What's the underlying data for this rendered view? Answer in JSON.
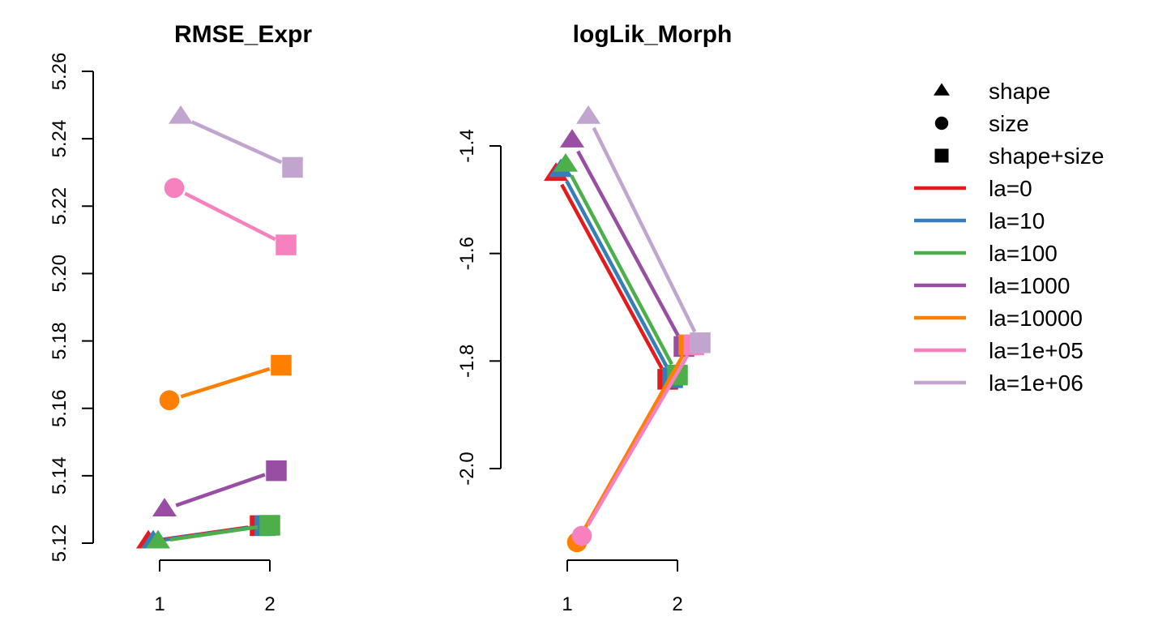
{
  "chart_data": [
    {
      "type": "line",
      "title": "RMSE_Expr",
      "xlabel": "",
      "ylabel": "",
      "x_ticks": [
        "1",
        "2"
      ],
      "y_ticks": [
        "5.12",
        "5.14",
        "5.16",
        "5.18",
        "5.20",
        "5.22",
        "5.24",
        "5.26"
      ],
      "ylim": [
        5.12,
        5.26
      ],
      "grid": false,
      "series": [
        {
          "name": "la=0",
          "start_shape": "shape",
          "x": [
            1,
            2
          ],
          "values": [
            5.1205,
            5.1252
          ]
        },
        {
          "name": "la=10",
          "start_shape": "shape",
          "x": [
            1,
            2
          ],
          "values": [
            5.1205,
            5.1252
          ]
        },
        {
          "name": "la=100",
          "start_shape": "shape",
          "x": [
            1,
            2
          ],
          "values": [
            5.1205,
            5.1253
          ]
        },
        {
          "name": "la=1000",
          "start_shape": "shape",
          "x": [
            1,
            2
          ],
          "values": [
            5.13,
            5.1415
          ]
        },
        {
          "name": "la=10000",
          "start_shape": "size",
          "x": [
            1,
            2
          ],
          "values": [
            5.1624,
            5.1728
          ]
        },
        {
          "name": "la=1e+05",
          "start_shape": "size",
          "x": [
            1,
            2
          ],
          "values": [
            5.2254,
            5.2085
          ]
        },
        {
          "name": "la=1e+06",
          "start_shape": "shape",
          "x": [
            1,
            2
          ],
          "values": [
            5.2465,
            5.2315
          ]
        }
      ]
    },
    {
      "type": "line",
      "title": "logLik_Morph",
      "xlabel": "",
      "ylabel": "",
      "x_ticks": [
        "1",
        "2"
      ],
      "y_ticks": [
        "-1.4",
        "-1.6",
        "-1.8",
        "-2.0"
      ],
      "ylim": [
        -2.14,
        -1.35
      ],
      "grid": false,
      "series": [
        {
          "name": "la=0",
          "start_shape": "shape",
          "x": [
            1,
            2
          ],
          "values": [
            -1.452,
            -1.834
          ]
        },
        {
          "name": "la=10",
          "start_shape": "shape",
          "x": [
            1,
            2
          ],
          "values": [
            -1.445,
            -1.831
          ]
        },
        {
          "name": "la=100",
          "start_shape": "shape",
          "x": [
            1,
            2
          ],
          "values": [
            -1.435,
            -1.826
          ]
        },
        {
          "name": "la=1000",
          "start_shape": "shape",
          "x": [
            1,
            2
          ],
          "values": [
            -1.39,
            -1.773
          ]
        },
        {
          "name": "la=10000",
          "start_shape": "size",
          "x": [
            1,
            2
          ],
          "values": [
            -2.137,
            -1.77
          ]
        },
        {
          "name": "la=1e+05",
          "start_shape": "size",
          "x": [
            1,
            2
          ],
          "values": [
            -2.125,
            -1.77
          ]
        },
        {
          "name": "la=1e+06",
          "start_shape": "shape",
          "x": [
            1,
            2
          ],
          "values": [
            -1.346,
            -1.766
          ]
        }
      ]
    }
  ],
  "legend": {
    "position": "right",
    "shapes": [
      {
        "label": "shape",
        "marker": "triangle"
      },
      {
        "label": "size",
        "marker": "circle"
      },
      {
        "label": "shape+size",
        "marker": "square"
      }
    ],
    "lines": [
      {
        "label": "la=0",
        "color": "#E41A1C"
      },
      {
        "label": "la=10",
        "color": "#377EB8"
      },
      {
        "label": "la=100",
        "color": "#4DAF4A"
      },
      {
        "label": "la=1000",
        "color": "#984EA3"
      },
      {
        "label": "la=10000",
        "color": "#FF7F00"
      },
      {
        "label": "la=1e+05",
        "color": "#F781BF"
      },
      {
        "label": "la=1e+06",
        "color": "#C2A5CF"
      }
    ]
  }
}
